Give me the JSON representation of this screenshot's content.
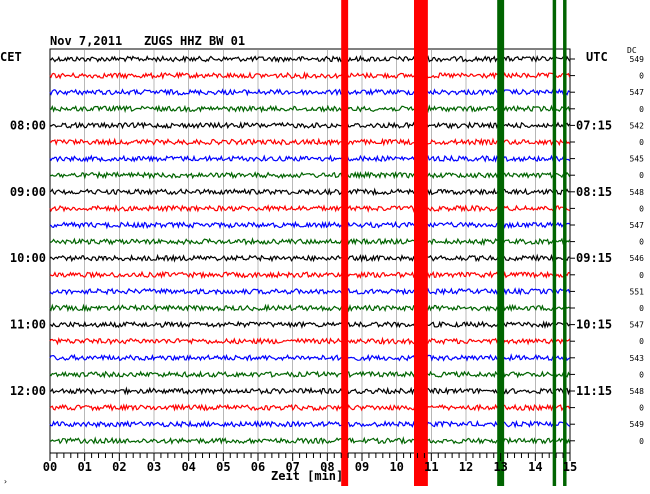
{
  "header": {
    "date": "Nov 7,2011",
    "station": "ZUGS HHZ BW 01"
  },
  "left_axis": {
    "timezone": "CET",
    "ticks": [
      "08:00",
      "09:00",
      "10:00",
      "11:00",
      "12:00"
    ]
  },
  "right_axis": {
    "timezone": "UTC",
    "ticks": [
      "07:15",
      "08:15",
      "09:15",
      "10:15",
      "11:15"
    ]
  },
  "dc_header": "DC",
  "dc_values": [
    "549",
    "0",
    "547",
    "0",
    "542",
    "0",
    "545",
    "0",
    "548",
    "0",
    "547",
    "0",
    "546",
    "0",
    "551",
    "0",
    "547",
    "0",
    "543",
    "0",
    "548",
    "0",
    "549",
    "0"
  ],
  "x_axis": {
    "label": "Zeit [min]",
    "ticks": [
      "00",
      "01",
      "02",
      "03",
      "04",
      "05",
      "06",
      "07",
      "08",
      "09",
      "10",
      "11",
      "12",
      "13",
      "14",
      "15"
    ],
    "range_min": [
      0,
      15
    ]
  },
  "corner_mark": "›",
  "colors": {
    "trace_cycle": [
      "#000000",
      "#ff0000",
      "#0000ff",
      "#006400"
    ],
    "event_red": "#ff0000",
    "event_green": "#006400"
  },
  "chart_data": {
    "type": "line",
    "traces": 24,
    "trace_color_cycle": [
      "black",
      "red",
      "blue",
      "green"
    ],
    "x_unit": "min",
    "xlim": [
      0,
      15
    ],
    "events": [
      {
        "color": "red",
        "start_min": 8.4,
        "end_min": 8.6
      },
      {
        "color": "red",
        "start_min": 10.5,
        "end_min": 10.9
      },
      {
        "color": "green",
        "start_min": 12.9,
        "end_min": 13.1
      },
      {
        "color": "green",
        "start_min": 14.5,
        "end_min": 14.6
      },
      {
        "color": "green",
        "start_min": 14.8,
        "end_min": 14.9
      }
    ]
  }
}
